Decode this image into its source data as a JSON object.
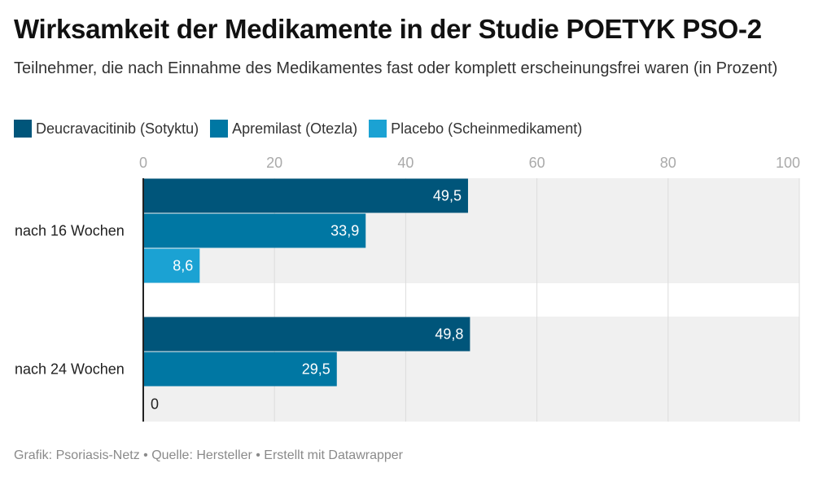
{
  "header": {
    "title": "Wirksamkeit der Medikamente in der Studie POETYK PSO-2",
    "subtitle": "Teilnehmer, die nach Einnahme des Medikamentes fast oder komplett erscheinungsfrei waren (in Prozent)"
  },
  "legend": [
    {
      "label": "Deucravacitinib (Sotyktu)",
      "color": "#00557a"
    },
    {
      "label": "Apremilast (Otezla)",
      "color": "#0077a3"
    },
    {
      "label": "Placebo (Scheinmedikament)",
      "color": "#1ba2d3"
    }
  ],
  "footer": {
    "source": "Grafik: Psoriasis-Netz • Quelle: Hersteller • Erstellt mit Datawrapper"
  },
  "chart_data": {
    "type": "bar",
    "orientation": "horizontal",
    "title": "Wirksamkeit der Medikamente in der Studie POETYK PSO-2",
    "xlabel": "",
    "ylabel": "",
    "xlim": [
      0,
      100
    ],
    "ticks": [
      0,
      20,
      40,
      60,
      80,
      100
    ],
    "grid": true,
    "categories": [
      "nach 16 Wochen",
      "nach 24 Wochen"
    ],
    "series": [
      {
        "name": "Deucravacitinib (Sotyktu)",
        "color": "#00557a",
        "values": [
          49.5,
          49.8
        ],
        "labels": [
          "49,5",
          "49,8"
        ]
      },
      {
        "name": "Apremilast (Otezla)",
        "color": "#0077a3",
        "values": [
          33.9,
          29.5
        ],
        "labels": [
          "33,9",
          "29,5"
        ]
      },
      {
        "name": "Placebo (Scheinmedikament)",
        "color": "#1ba2d3",
        "values": [
          8.6,
          0
        ],
        "labels": [
          "8,6",
          "0"
        ]
      }
    ]
  }
}
